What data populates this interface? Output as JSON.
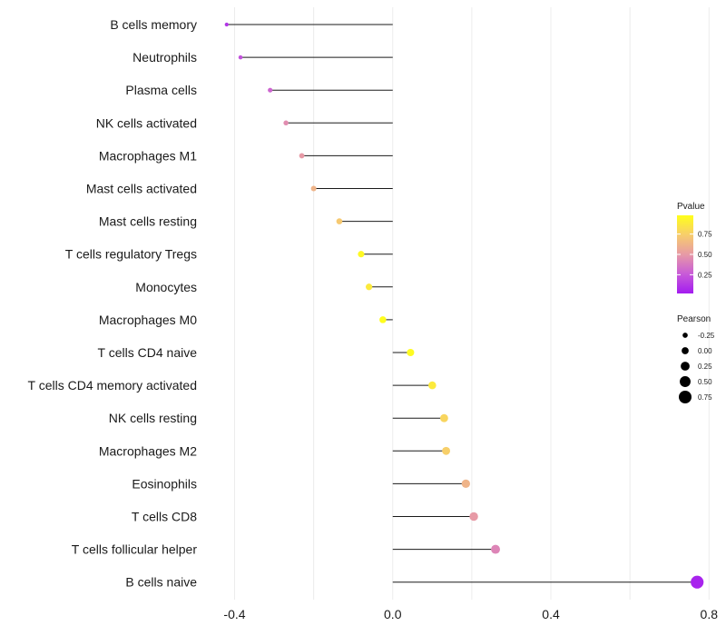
{
  "chart_data": {
    "type": "lollipop",
    "title": "",
    "xlabel": "",
    "ylabel": "",
    "xlim": [
      -0.47,
      0.82
    ],
    "x_ticks": [
      -0.4,
      0.0,
      0.4,
      0.8
    ],
    "x_tick_labels": [
      "-0.4",
      "0.0",
      "0.4",
      "0.8"
    ],
    "grid": true,
    "categories": [
      "B cells memory",
      "Neutrophils",
      "Plasma cells",
      "NK cells activated",
      "Macrophages M1",
      "Mast cells activated",
      "Mast cells resting",
      "T cells regulatory  Tregs ",
      "Monocytes",
      "Macrophages M0",
      "T cells CD4 naive",
      "T cells CD4 memory activated",
      "NK cells resting",
      "Macrophages M2",
      "Eosinophils",
      "T cells CD8",
      "T cells follicular helper",
      "B cells naive"
    ],
    "pearson": [
      -0.42,
      -0.385,
      -0.31,
      -0.27,
      -0.23,
      -0.2,
      -0.135,
      -0.08,
      -0.06,
      -0.025,
      0.045,
      0.1,
      0.13,
      0.135,
      0.185,
      0.205,
      0.26,
      0.77
    ],
    "pvalue": [
      0.12,
      0.22,
      0.3,
      0.45,
      0.5,
      0.62,
      0.72,
      0.95,
      0.88,
      0.97,
      0.96,
      0.88,
      0.78,
      0.75,
      0.62,
      0.5,
      0.42,
      0.05
    ],
    "legend_color": {
      "title": "Pvalue",
      "ticks": [
        0.25,
        0.5,
        0.75
      ],
      "tick_labels": [
        "0.25",
        "0.50",
        "0.75"
      ],
      "range": [
        0.02,
        0.98
      ],
      "color_low": "#a31cf0",
      "color_high": "#ffff1a"
    },
    "legend_size": {
      "title": "Pearson",
      "values": [
        -0.25,
        0.0,
        0.25,
        0.5,
        0.75
      ],
      "labels": [
        "-0.25",
        "0.00",
        "0.25",
        "0.50",
        "0.75"
      ]
    },
    "legend_position": "right"
  }
}
